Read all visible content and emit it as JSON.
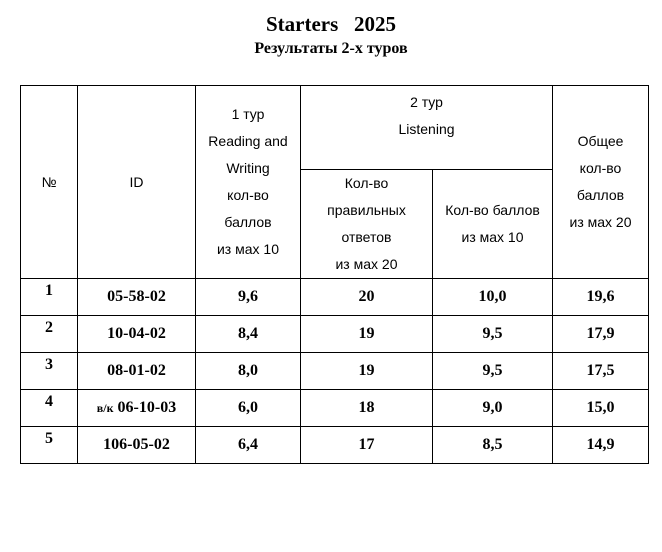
{
  "header": {
    "title": "Starters   2025",
    "subtitle": "Результаты 2-х туров"
  },
  "table": {
    "head": {
      "num": "№",
      "id": "ID",
      "round1": [
        "1 тур",
        "Reading and",
        "Writing",
        "кол-во",
        "баллов",
        "из мах 10"
      ],
      "round2": [
        "2 тур",
        "Listening"
      ],
      "round2_correct": [
        "Кол-во",
        "правильных",
        "ответов",
        "из мах 20"
      ],
      "round2_points": [
        "Кол-во баллов",
        "из мах 10"
      ],
      "total": [
        "Общее",
        "кол-во",
        "баллов",
        "из мах 20"
      ]
    },
    "rows": [
      {
        "num": "1",
        "note": null,
        "id": "05-58-02",
        "cells": [
          "9,6",
          "20",
          "10,0",
          "19,6"
        ]
      },
      {
        "num": "2",
        "note": null,
        "id": "10-04-02",
        "cells": [
          "8,4",
          "19",
          "9,5",
          "17,9"
        ]
      },
      {
        "num": "3",
        "note": null,
        "id": "08-01-02",
        "cells": [
          "8,0",
          "19",
          "9,5",
          "17,5"
        ]
      },
      {
        "num": "4",
        "note": "в/к",
        "id": "06-10-03",
        "cells": [
          "6,0",
          "18",
          "9,0",
          "15,0"
        ]
      },
      {
        "num": "5",
        "note": null,
        "id": "106-05-02",
        "cells": [
          "6,4",
          "17",
          "8,5",
          "14,9"
        ]
      }
    ]
  }
}
